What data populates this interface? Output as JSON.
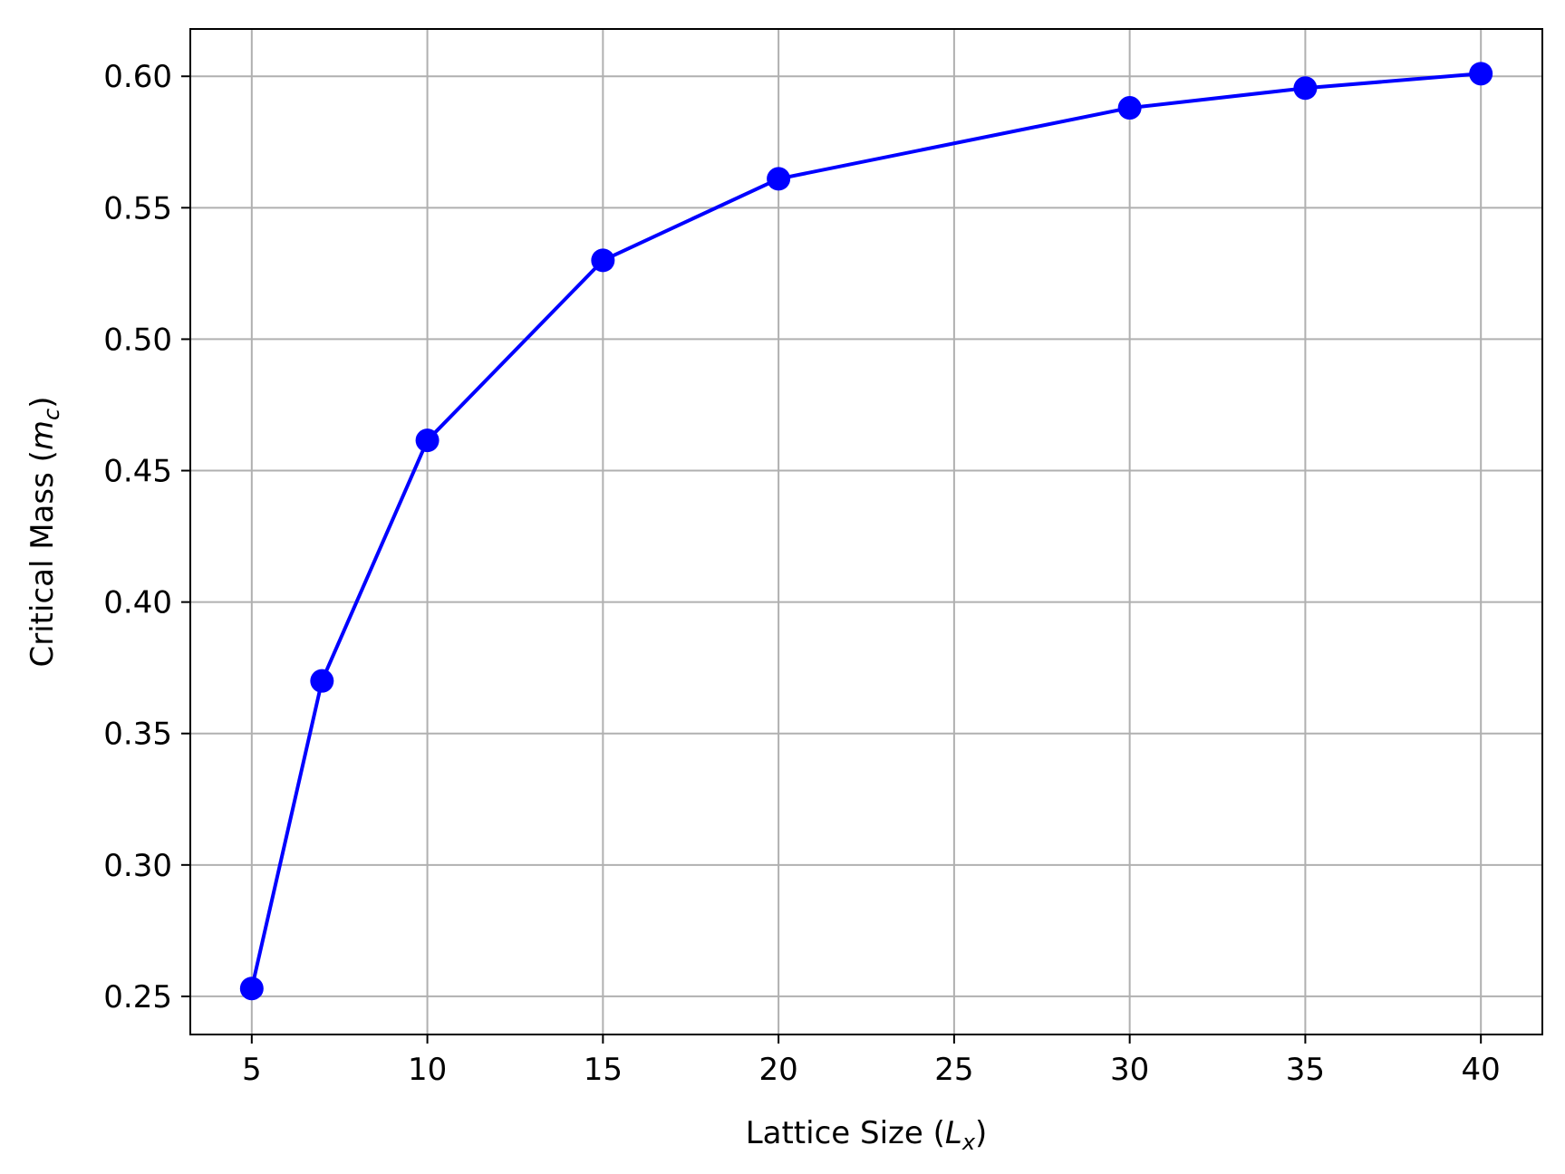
{
  "chart_data": {
    "type": "line",
    "title": "",
    "xlabel": {
      "main": "Lattice Size (",
      "sym": "L",
      "sub": "x",
      "close": ")"
    },
    "ylabel": {
      "main": "Critical Mass (",
      "sym": "m",
      "sub": "c",
      "close": ")"
    },
    "xlim": [
      3.25,
      41.75
    ],
    "ylim": [
      0.2355,
      0.618
    ],
    "xticks": [
      5,
      10,
      15,
      20,
      25,
      30,
      35,
      40
    ],
    "xtick_labels": [
      "5",
      "10",
      "15",
      "20",
      "25",
      "30",
      "35",
      "40"
    ],
    "yticks": [
      0.25,
      0.3,
      0.35,
      0.4,
      0.45,
      0.5,
      0.55,
      0.6
    ],
    "ytick_labels": [
      "0.25",
      "0.30",
      "0.35",
      "0.40",
      "0.45",
      "0.50",
      "0.55",
      "0.60"
    ],
    "grid": true,
    "series": [
      {
        "color": "#0000ff",
        "marker": "circle",
        "x": [
          5,
          7,
          10,
          15,
          20,
          30,
          35,
          40
        ],
        "y": [
          0.253,
          0.37,
          0.4615,
          0.53,
          0.561,
          0.588,
          0.5955,
          0.601
        ]
      }
    ]
  }
}
